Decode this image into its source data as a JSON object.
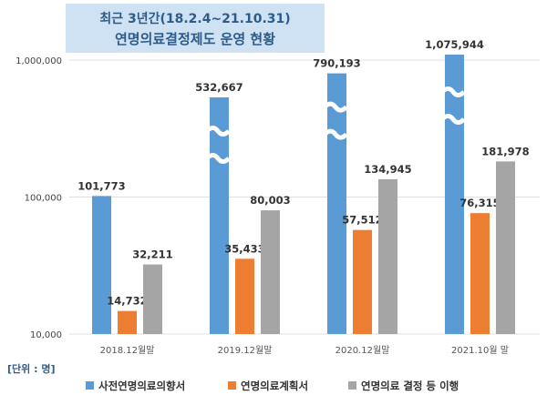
{
  "chart_data": {
    "type": "bar",
    "title_lines": [
      "최근 3년간(18.2.4~21.10.31)",
      "연명의료결정제도 운영 현황"
    ],
    "unit_label": "[단위 : 명]",
    "y_scale": "log",
    "ylim": [
      10000,
      1000000
    ],
    "y_ticks": [
      10000,
      100000,
      1000000
    ],
    "y_tick_labels": [
      "10,000",
      "100,000",
      "1,000,000"
    ],
    "grid": true,
    "legend_position": "bottom",
    "categories": [
      "2018.12월말",
      "2019.12월말",
      "2020.12월말",
      "2021.10월 말"
    ],
    "series": [
      {
        "name": "사전연명의료의향서",
        "color": "#5b9bd5",
        "values": [
          101773,
          532667,
          790193,
          1075944
        ],
        "labels": [
          "101,773",
          "532,667",
          "790,193",
          "1,075,944"
        ],
        "axis_break": [
          false,
          true,
          true,
          true
        ]
      },
      {
        "name": "연명의료계획서",
        "color": "#ed7d31",
        "values": [
          14732,
          35433,
          57512,
          76315
        ],
        "labels": [
          "14,732",
          "35,433",
          "57,512",
          "76,315"
        ]
      },
      {
        "name": "연명의료 결정 등 이행",
        "color": "#a5a5a5",
        "values": [
          32211,
          80003,
          134945,
          181978
        ],
        "labels": [
          "32,211",
          "80,003",
          "134,945",
          "181,978"
        ]
      }
    ]
  }
}
